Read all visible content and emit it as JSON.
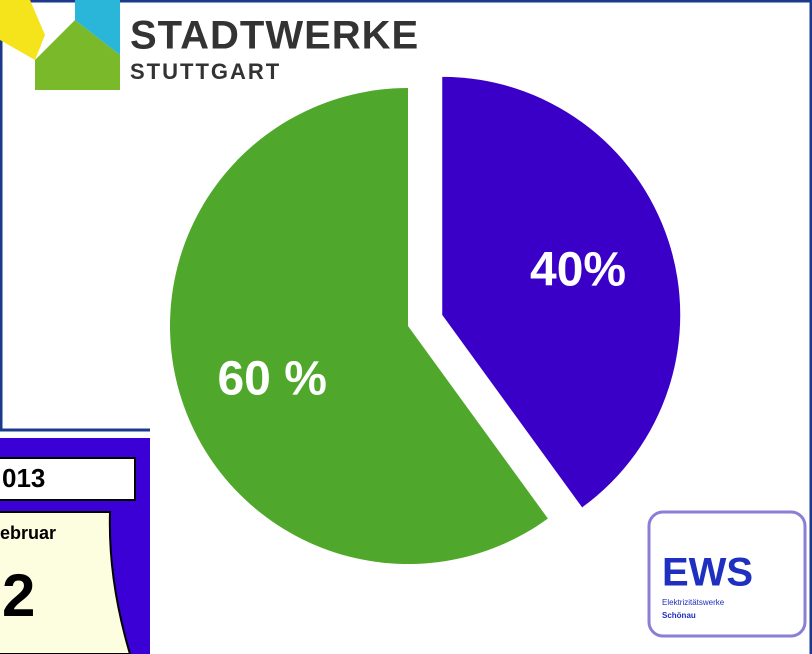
{
  "chart_data": {
    "type": "pie",
    "values": [
      60,
      40
    ],
    "value_labels": [
      "60 %",
      "40%"
    ],
    "colors": [
      "#4fa82b",
      "#3a00c8"
    ]
  },
  "logo": {
    "name": "STADTWERKE",
    "city": "STUTTGART"
  },
  "calendar": {
    "year": "013",
    "month": "ebruar",
    "day": "2"
  },
  "ews_logo": {
    "name": "EWS",
    "line1": "Elektrizitätswerke",
    "line2": "Schönau"
  }
}
